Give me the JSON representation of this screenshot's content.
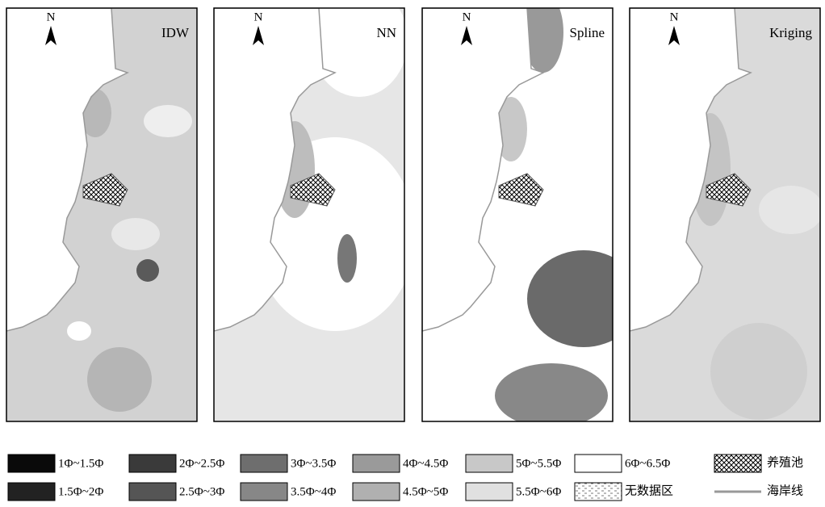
{
  "panels": [
    {
      "title": "IDW",
      "north": "N"
    },
    {
      "title": "NN",
      "north": "N"
    },
    {
      "title": "Spline",
      "north": "N"
    },
    {
      "title": "Kriging",
      "north": "N"
    }
  ],
  "legend": [
    {
      "label": "1Φ~1.5Φ",
      "color": "#0a0a0a"
    },
    {
      "label": "2Φ~2.5Φ",
      "color": "#3a3a3a"
    },
    {
      "label": "3Φ~3.5Φ",
      "color": "#6e6e6e"
    },
    {
      "label": "4Φ~4.5Φ",
      "color": "#9a9a9a"
    },
    {
      "label": "5Φ~5.5Φ",
      "color": "#c8c8c8"
    },
    {
      "label": "6Φ~6.5Φ",
      "color": "#ffffff"
    },
    {
      "label": "1.5Φ~2Φ",
      "color": "#222222"
    },
    {
      "label": "2.5Φ~3Φ",
      "color": "#555555"
    },
    {
      "label": "3.5Φ~4Φ",
      "color": "#878787"
    },
    {
      "label": "4.5Φ~5Φ",
      "color": "#b0b0b0"
    },
    {
      "label": "5.5Φ~6Φ",
      "color": "#e0e0e0"
    }
  ],
  "legend_extra": [
    {
      "label": "无数据区"
    },
    {
      "label": "养殖池"
    },
    {
      "label": "海岸线"
    }
  ]
}
